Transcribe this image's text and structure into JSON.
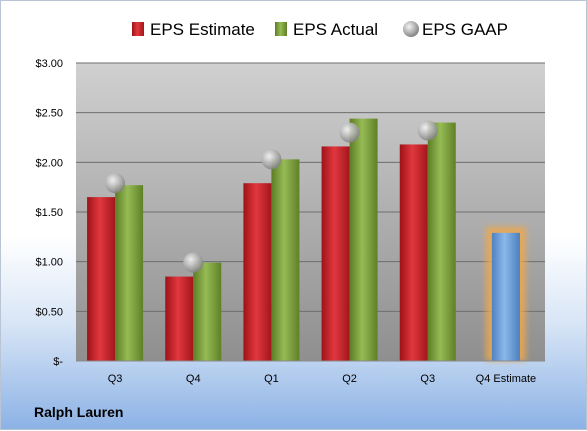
{
  "company_label": "Ralph Lauren",
  "chart_data": {
    "type": "bar",
    "categories": [
      "Q3",
      "Q4",
      "Q1",
      "Q2",
      "Q3",
      "Q4 Estimate"
    ],
    "series": [
      {
        "name": "EPS Estimate",
        "values": [
          1.65,
          0.85,
          1.79,
          2.16,
          2.18,
          null
        ],
        "color": "#cc2229"
      },
      {
        "name": "EPS Actual",
        "values": [
          1.77,
          0.99,
          2.03,
          2.44,
          2.4,
          null
        ],
        "color": "#7fa23d"
      },
      {
        "name": "EPS GAAP",
        "values": [
          1.79,
          0.99,
          2.03,
          2.3,
          2.32,
          null
        ],
        "color": "#a0a0a0"
      }
    ],
    "forecast": {
      "category": "Q4 Estimate",
      "value": 1.29,
      "color": "#6fa0d8",
      "glow": "#f2a84a"
    },
    "y_ticks": [
      "$-",
      "$0.50",
      "$1.00",
      "$1.50",
      "$2.00",
      "$2.50",
      "$3.00"
    ],
    "ylim": [
      0,
      3.0
    ],
    "grid": true,
    "legend_position": "top"
  }
}
